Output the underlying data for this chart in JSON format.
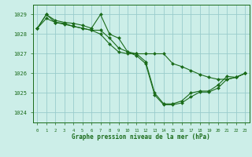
{
  "title": "Graphe pression niveau de la mer (hPa)",
  "bg_color": "#cceee8",
  "grid_color": "#99cccc",
  "line_color": "#1a6b1a",
  "marker_color": "#1a6b1a",
  "xlim": [
    -0.5,
    23.5
  ],
  "ylim": [
    1023.5,
    1029.5
  ],
  "yticks": [
    1024,
    1025,
    1026,
    1027,
    1028,
    1029
  ],
  "xticks": [
    0,
    1,
    2,
    3,
    4,
    5,
    6,
    7,
    8,
    9,
    10,
    11,
    12,
    13,
    14,
    15,
    16,
    17,
    18,
    19,
    20,
    21,
    22,
    23
  ],
  "series": [
    {
      "x": [
        0,
        1,
        2,
        3,
        4,
        5,
        6,
        7,
        8,
        9,
        10,
        11,
        12,
        13,
        14,
        15,
        16,
        17,
        18,
        19,
        20,
        21,
        22,
        23
      ],
      "y": [
        1028.3,
        1029.0,
        1028.7,
        1028.6,
        1028.55,
        1028.45,
        1028.3,
        1029.0,
        1028.0,
        1027.8,
        1027.1,
        1027.0,
        1026.6,
        1025.0,
        1024.45,
        1024.45,
        1024.6,
        1025.0,
        1025.1,
        1025.1,
        1025.4,
        1025.85,
        1025.8,
        1026.0
      ]
    },
    {
      "x": [
        0,
        1,
        2,
        3,
        4,
        5,
        6,
        7,
        8,
        9,
        10,
        11,
        12,
        13,
        14,
        15,
        16,
        17,
        18,
        19,
        20,
        21,
        22,
        23
      ],
      "y": [
        1028.3,
        1029.0,
        1028.6,
        1028.55,
        1028.4,
        1028.3,
        1028.2,
        1028.2,
        1027.8,
        1027.3,
        1027.1,
        1026.9,
        1026.5,
        1024.9,
        1024.4,
        1024.4,
        1024.5,
        1024.8,
        1025.05,
        1025.05,
        1025.25,
        1025.7,
        1025.8,
        1026.0
      ]
    },
    {
      "x": [
        0,
        1,
        2,
        3,
        4,
        5,
        6,
        7,
        8,
        9,
        10,
        11,
        12,
        13,
        14,
        15,
        16,
        17,
        18,
        19,
        20,
        21,
        22,
        23
      ],
      "y": [
        1028.3,
        1028.8,
        1028.6,
        1028.5,
        1028.4,
        1028.3,
        1028.2,
        1028.0,
        1027.5,
        1027.1,
        1027.0,
        1027.0,
        1027.0,
        1027.0,
        1027.0,
        1026.5,
        1026.35,
        1026.15,
        1025.95,
        1025.8,
        1025.7,
        1025.7,
        1025.8,
        1026.0
      ]
    }
  ]
}
